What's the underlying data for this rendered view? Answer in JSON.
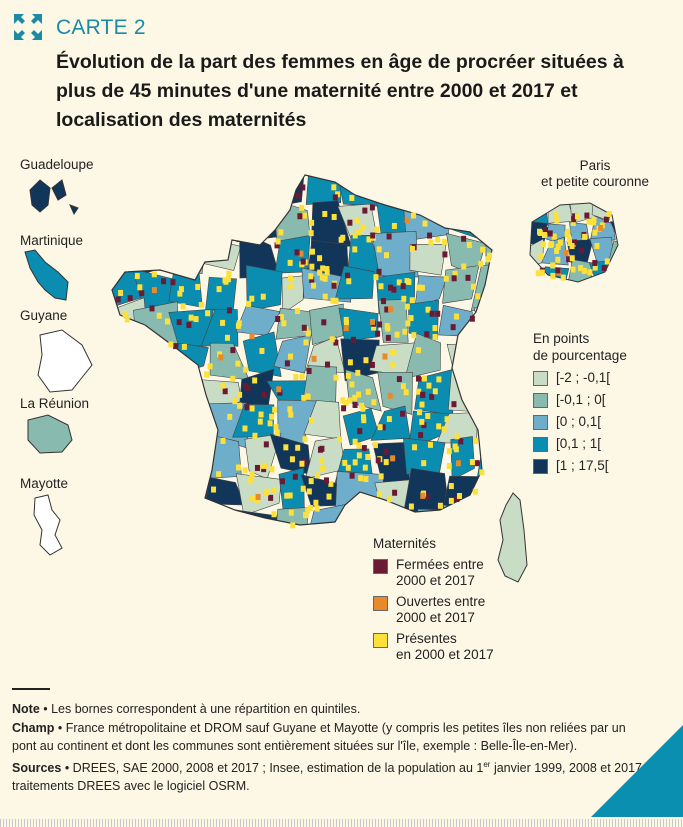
{
  "header": {
    "label": "CARTE 2",
    "icon": "expand-arrows-icon",
    "title": "Évolution de la part des femmes en âge de procréer situées à plus de 45 minutes d'une maternité entre 2000 et 2017 et localisation des maternités"
  },
  "territories": {
    "guadeloupe": "Guadeloupe",
    "martinique": "Martinique",
    "guyane": "Guyane",
    "reunion": "La Réunion",
    "mayotte": "Mayotte",
    "paris_line1": "Paris",
    "paris_line2": "et petite couronne"
  },
  "legend_change": {
    "title_line1": "En points",
    "title_line2": "de pourcentage",
    "classes": [
      {
        "label": "[-2 ; -0,1[",
        "color": "#c9dcc6"
      },
      {
        "label": "[-0,1 ; 0[",
        "color": "#88bab0"
      },
      {
        "label": "[0 ; 0,1[",
        "color": "#6eaecb"
      },
      {
        "label": "[0,1 ; 1[",
        "color": "#0a8db0"
      },
      {
        "label": "[1 ; 17,5[",
        "color": "#12355a"
      }
    ]
  },
  "legend_maternity": {
    "title": "Maternités",
    "items": [
      {
        "line1": "Fermées entre",
        "line2": "2000 et 2017",
        "color": "#6b1a34"
      },
      {
        "line1": "Ouvertes entre",
        "line2": "2000 et 2017",
        "color": "#e8892c"
      },
      {
        "line1": "Présentes",
        "line2": "en 2000 et 2017",
        "color": "#fde03a"
      }
    ]
  },
  "notes": {
    "note_label": "Note",
    "note_text": " • Les bornes correspondent à une répartition en quintiles.",
    "champ_label": "Champ",
    "champ_text": " • France métropolitaine et DROM sauf Guyane et Mayotte (y compris les petites îles non reliées par un pont au continent et dont les communes sont entièrement situées sur l'île, exemple : Belle-Île-en-Mer).",
    "sources_label": "Sources",
    "sources_text_a": " • DREES, SAE 2000, 2008 et 2017 ; Insee, estimation de la population au 1",
    "sources_sup": "er",
    "sources_text_b": " janvier 1999, 2008 et 2017 ; traitements DREES avec le logiciel OSRM."
  }
}
